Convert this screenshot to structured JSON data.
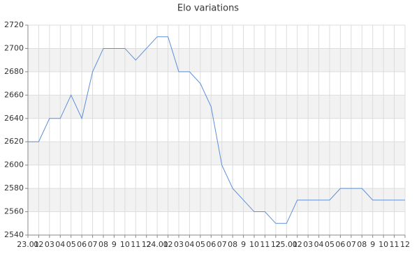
{
  "chart_data": {
    "type": "line",
    "title": "Elo variations",
    "categories": [
      "23.01",
      "02",
      "03",
      "04",
      "05",
      "06",
      "07",
      "08",
      "9",
      "10",
      "11",
      "12",
      "24.01",
      "02",
      "03",
      "04",
      "05",
      "06",
      "07",
      "08",
      "9",
      "10",
      "11",
      "12",
      "25.01",
      "02",
      "03",
      "04",
      "05",
      "06",
      "07",
      "08",
      "9",
      "10",
      "11",
      "12"
    ],
    "series": [
      {
        "name": "Elo",
        "color": "#5b8fd9",
        "values": [
          2620,
          2620,
          2640,
          2640,
          2660,
          2640,
          2680,
          2700,
          2700,
          2700,
          2690,
          2700,
          2710,
          2710,
          2680,
          2680,
          2670,
          2650,
          2600,
          2580,
          2570,
          2560,
          2560,
          2550,
          2550,
          2570,
          2570,
          2570,
          2570,
          2580,
          2580,
          2580,
          2570,
          2570,
          2570,
          2570
        ]
      }
    ],
    "ylim": [
      2540,
      2720
    ],
    "yticks": [
      2540,
      2560,
      2580,
      2600,
      2620,
      2640,
      2660,
      2680,
      2700,
      2720
    ],
    "grid": true
  }
}
